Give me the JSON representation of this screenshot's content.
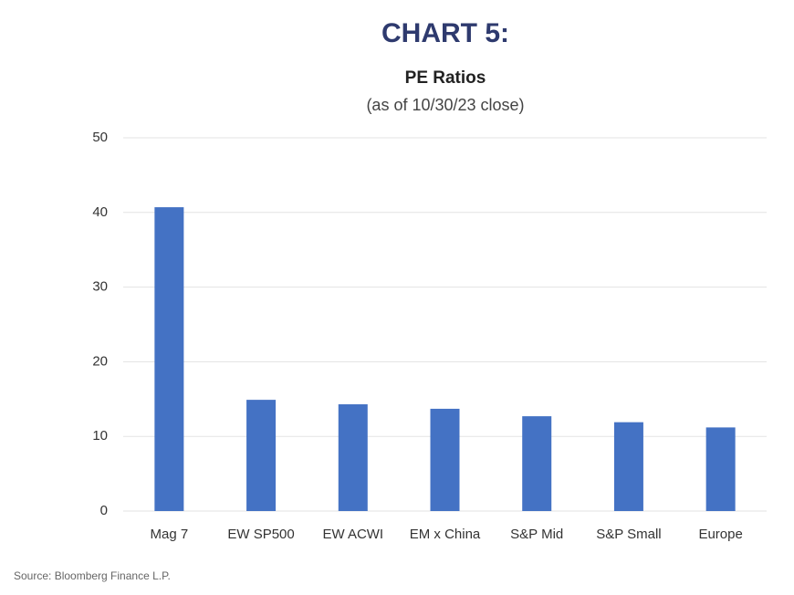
{
  "chart_data": {
    "type": "bar",
    "title": "CHART 5:",
    "subtitle": "PE Ratios",
    "note": "(as of 10/30/23 close)",
    "categories": [
      "Mag 7",
      "EW SP500",
      "EW ACWI",
      "EM x China",
      "S&P Mid",
      "S&P Small",
      "Europe"
    ],
    "values": [
      40.7,
      14.9,
      14.3,
      13.7,
      12.7,
      11.9,
      11.2
    ],
    "color": "#4472c4",
    "ylim": [
      0,
      50
    ],
    "yticks": [
      0,
      10,
      20,
      30,
      40,
      50
    ],
    "grid": true,
    "source": "Source:  Bloomberg Finance L.P."
  }
}
